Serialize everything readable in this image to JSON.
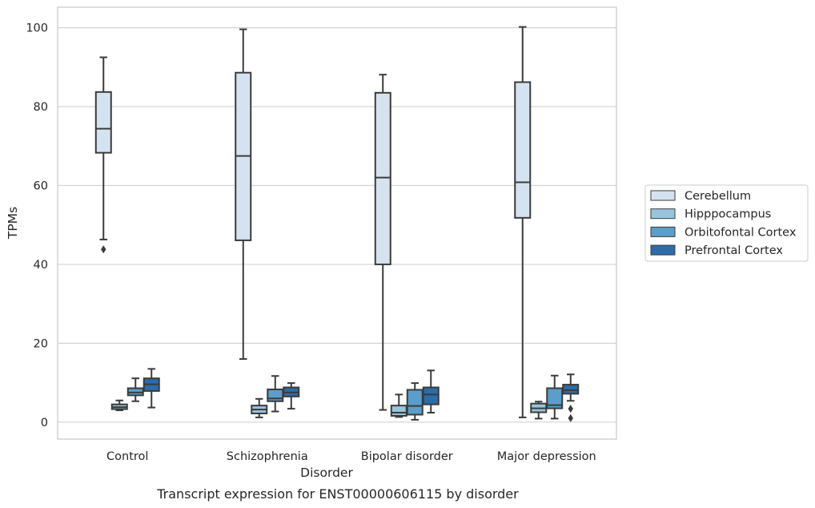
{
  "chart_data": {
    "type": "box",
    "caption": "Transcript expression for ENST00000606115 by disorder",
    "xlabel": "Disorder",
    "ylabel": "TPMs",
    "ylim": [
      -4.3,
      105.2
    ],
    "yticks": [
      0,
      20,
      40,
      60,
      80,
      100
    ],
    "grid": true,
    "legend_position": "right",
    "categories": [
      "Control",
      "Schizophrenia",
      "Bipolar disorder",
      "Major depression"
    ],
    "series": [
      {
        "name": "Cerebellum",
        "color": "#d5e3f1",
        "boxes": [
          {
            "whisker_low": 46.3,
            "q1": 68.3,
            "median": 74.4,
            "q3": 83.7,
            "whisker_high": 92.5,
            "outliers": [
              43.8
            ]
          },
          {
            "whisker_low": 16.0,
            "q1": 46.1,
            "median": 67.5,
            "q3": 88.6,
            "whisker_high": 99.6,
            "outliers": []
          },
          {
            "whisker_low": 3.1,
            "q1": 40.0,
            "median": 62.0,
            "q3": 83.5,
            "whisker_high": 88.1,
            "outliers": []
          },
          {
            "whisker_low": 1.2,
            "q1": 51.8,
            "median": 60.8,
            "q3": 86.2,
            "whisker_high": 100.2,
            "outliers": []
          }
        ]
      },
      {
        "name": "Hipppocampus",
        "color": "#9ac4dd",
        "boxes": [
          {
            "whisker_low": 3.0,
            "q1": 3.3,
            "median": 3.8,
            "q3": 4.5,
            "whisker_high": 5.5,
            "outliers": []
          },
          {
            "whisker_low": 1.2,
            "q1": 2.2,
            "median": 3.2,
            "q3": 4.2,
            "whisker_high": 5.9,
            "outliers": []
          },
          {
            "whisker_low": 1.3,
            "q1": 1.6,
            "median": 2.4,
            "q3": 4.2,
            "whisker_high": 7.0,
            "outliers": []
          },
          {
            "whisker_low": 0.9,
            "q1": 2.5,
            "median": 3.5,
            "q3": 4.7,
            "whisker_high": 5.2,
            "outliers": []
          }
        ]
      },
      {
        "name": "Orbitofontal Cortex",
        "color": "#5a9ec9",
        "boxes": [
          {
            "whisker_low": 5.3,
            "q1": 6.8,
            "median": 7.5,
            "q3": 8.6,
            "whisker_high": 11.1,
            "outliers": []
          },
          {
            "whisker_low": 2.7,
            "q1": 5.3,
            "median": 6.0,
            "q3": 8.3,
            "whisker_high": 11.7,
            "outliers": []
          },
          {
            "whisker_low": 0.6,
            "q1": 1.9,
            "median": 4.1,
            "q3": 8.2,
            "whisker_high": 9.9,
            "outliers": []
          },
          {
            "whisker_low": 0.9,
            "q1": 3.5,
            "median": 4.3,
            "q3": 8.6,
            "whisker_high": 11.8,
            "outliers": []
          }
        ]
      },
      {
        "name": "Prefrontal Cortex",
        "color": "#2b6ca9",
        "boxes": [
          {
            "whisker_low": 3.7,
            "q1": 7.9,
            "median": 9.6,
            "q3": 11.1,
            "whisker_high": 13.5,
            "outliers": []
          },
          {
            "whisker_low": 3.4,
            "q1": 6.5,
            "median": 7.5,
            "q3": 8.8,
            "whisker_high": 9.9,
            "outliers": []
          },
          {
            "whisker_low": 2.4,
            "q1": 4.5,
            "median": 7.0,
            "q3": 8.8,
            "whisker_high": 13.1,
            "outliers": []
          },
          {
            "whisker_low": 5.4,
            "q1": 7.2,
            "median": 8.1,
            "q3": 9.5,
            "whisker_high": 12.1,
            "outliers": [
              3.4,
              1.0
            ]
          }
        ]
      }
    ]
  }
}
